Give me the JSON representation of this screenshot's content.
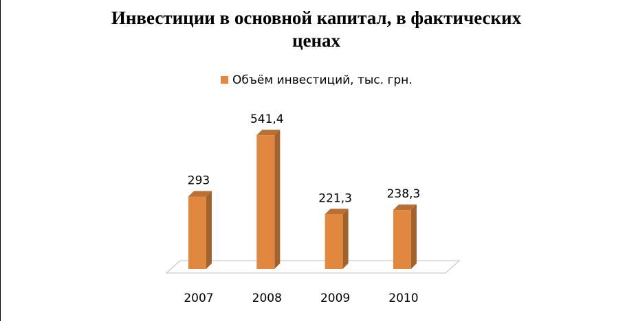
{
  "chart_data": {
    "type": "bar3d",
    "title": "Инвестиции в основной капитал, в фактических ценах",
    "categories": [
      "2007",
      "2008",
      "2009",
      "2010"
    ],
    "series": [
      {
        "name": "Объём инвестиций, тыс. грн.",
        "color": "#e0883f",
        "values": [
          293,
          541.4,
          221.3,
          238.3
        ],
        "value_labels": [
          "293",
          "541,4",
          "221,3",
          "238,3"
        ]
      }
    ],
    "legend": "top"
  }
}
